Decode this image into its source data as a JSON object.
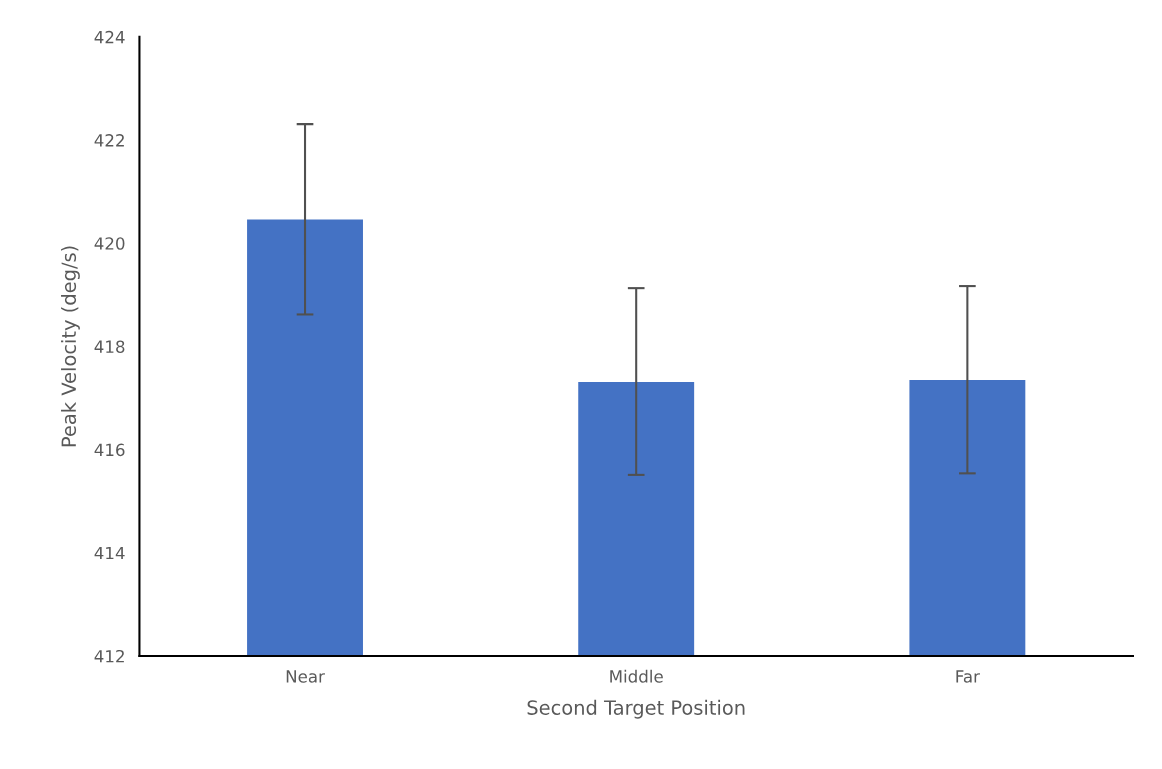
{
  "chart_data": {
    "type": "bar",
    "xlabel": "Second Target Position",
    "ylabel": "Peak Velocity (deg/s)",
    "categories": [
      "Near",
      "Middle",
      "Far"
    ],
    "values": [
      420.46,
      417.31,
      417.35
    ],
    "errors": [
      [
        418.62,
        422.31
      ],
      [
        415.51,
        419.13
      ],
      [
        415.54,
        419.17
      ]
    ],
    "color": "#4472c4",
    "ylim": [
      412,
      424
    ],
    "yticks": [
      412,
      414,
      416,
      418,
      420,
      422,
      424
    ],
    "grid": false,
    "legend": false
  }
}
